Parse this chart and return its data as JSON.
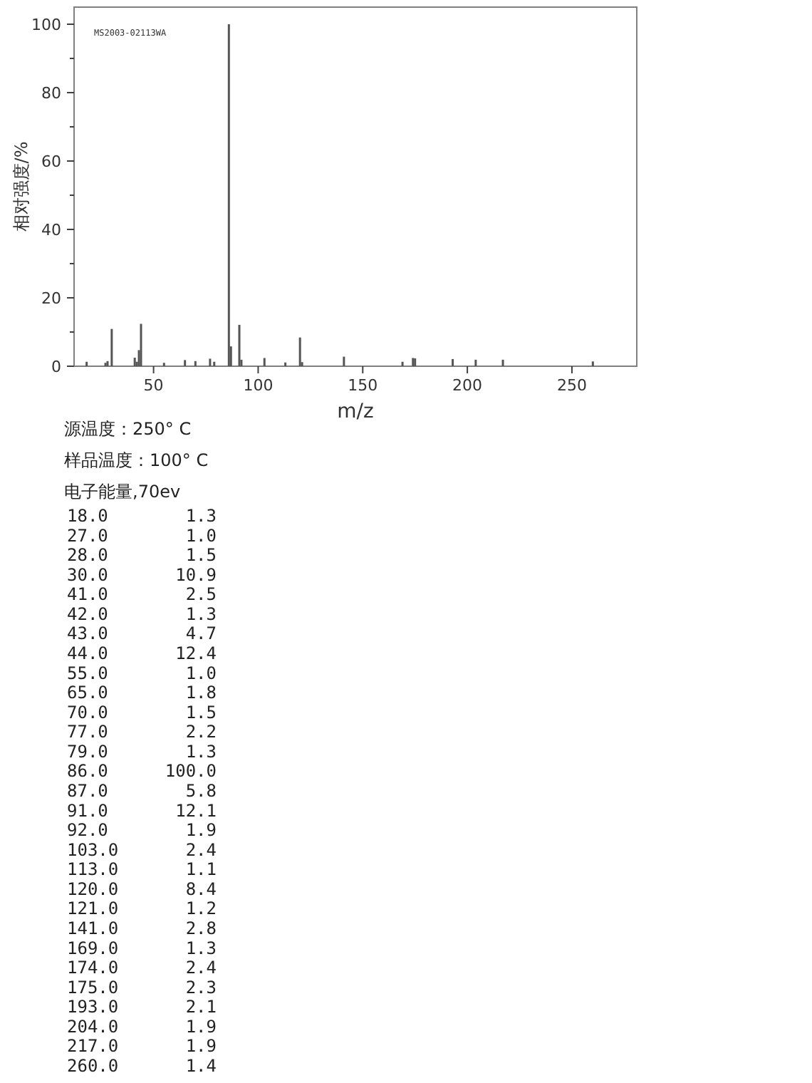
{
  "chart_data": [
    {
      "type": "bar",
      "xlabel": "m/z",
      "ylabel": "相对强度/%",
      "annotations": [
        "MS2003-02113WA",
        "源温度：250° C",
        "样品温度：100° C",
        "电子能量,70ev"
      ],
      "x": [
        18,
        27,
        28,
        30,
        41,
        42,
        43,
        44,
        55,
        65,
        70,
        77,
        79,
        86,
        87,
        91,
        92,
        103,
        113,
        120,
        121,
        141,
        169,
        174,
        175,
        193,
        204,
        217,
        260
      ],
      "values": [
        1.3,
        1.0,
        1.5,
        10.9,
        2.5,
        1.3,
        4.7,
        12.4,
        1.0,
        1.8,
        1.5,
        2.2,
        1.3,
        100.0,
        5.8,
        12.1,
        1.9,
        2.4,
        1.1,
        8.4,
        1.2,
        2.8,
        1.3,
        2.4,
        2.3,
        2.1,
        1.9,
        1.9,
        1.4
      ],
      "color": "#555555",
      "xlim": [
        12,
        281
      ],
      "ylim": [
        0,
        105
      ],
      "xticks": [
        50,
        100,
        150,
        200,
        250
      ],
      "yticks": [
        0,
        20,
        40,
        60,
        80,
        100
      ]
    },
    {
      "type": "other",
      "categories": [
        "18.0",
        "27.0",
        "28.0",
        "30.0",
        "41.0",
        "42.0",
        "43.0",
        "44.0",
        "55.0",
        "65.0",
        "70.0",
        "77.0",
        "79.0",
        "86.0",
        "87.0",
        "91.0",
        "92.0",
        "103.0",
        "113.0",
        "120.0",
        "121.0",
        "141.0",
        "169.0",
        "174.0",
        "175.0",
        "193.0",
        "204.0",
        "217.0",
        "260.0"
      ],
      "values": [
        1.3,
        1.0,
        1.5,
        10.9,
        2.5,
        1.3,
        4.7,
        12.4,
        1.0,
        1.8,
        1.5,
        2.2,
        1.3,
        100.0,
        5.8,
        12.1,
        1.9,
        2.4,
        1.1,
        8.4,
        1.2,
        2.8,
        1.3,
        2.4,
        2.3,
        2.1,
        1.9,
        1.9,
        1.4
      ],
      "value_labels": [
        "1.3",
        "1.0",
        "1.5",
        "10.9",
        "2.5",
        "1.3",
        "4.7",
        "12.4",
        "1.0",
        "1.8",
        "1.5",
        "2.2",
        "1.3",
        "100.0",
        "5.8",
        "12.1",
        "1.9",
        "2.4",
        "1.1",
        "8.4",
        "1.2",
        "2.8",
        "1.3",
        "2.4",
        "2.3",
        "2.1",
        "1.9",
        "1.9",
        "1.4"
      ]
    }
  ]
}
